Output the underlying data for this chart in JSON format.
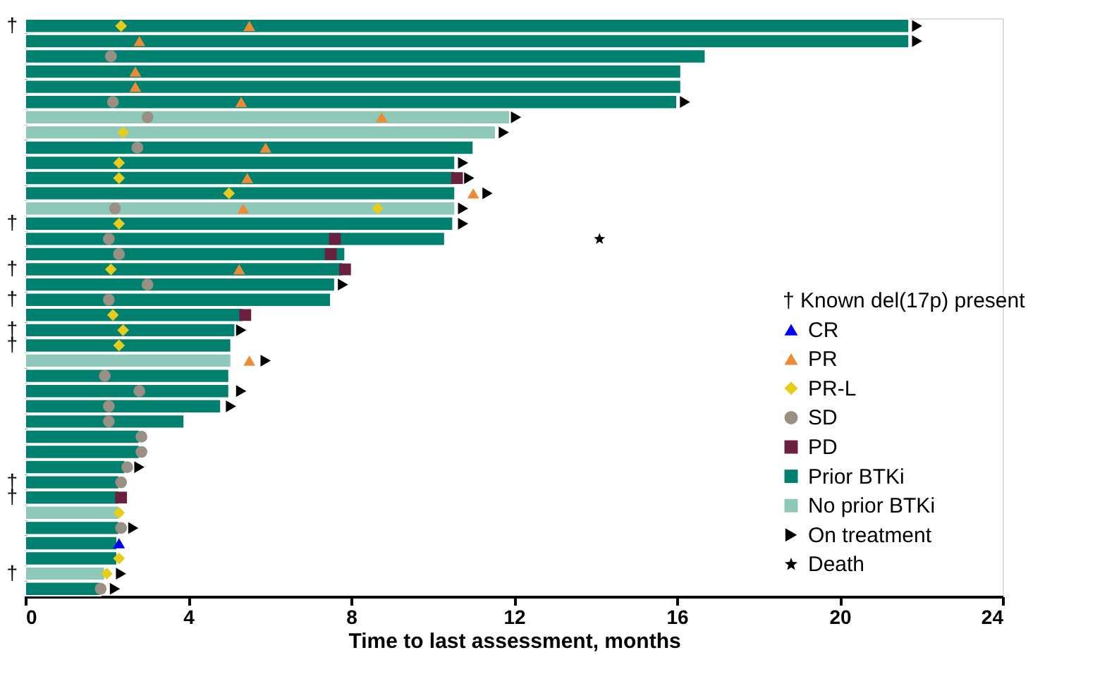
{
  "chart_data": {
    "type": "bar",
    "orientation": "horizontal",
    "xlabel": "Time to last assessment, months",
    "xlim": [
      0,
      24
    ],
    "xticks": [
      0,
      4,
      8,
      12,
      16,
      20,
      24
    ],
    "grid": false,
    "legend": "bottom right",
    "annotations": [
      "† Known del(17p) present"
    ],
    "categories": [
      "†",
      null,
      null,
      null,
      null,
      null,
      null,
      null,
      null,
      null,
      null,
      null,
      null,
      "†",
      null,
      null,
      "†",
      null,
      "†",
      null,
      "†",
      "†",
      null,
      null,
      null,
      null,
      null,
      null,
      null,
      null,
      "†",
      "†",
      null,
      null,
      null,
      null,
      "†",
      null
    ],
    "series": [
      {
        "name": "CR",
        "type": "scatter",
        "marker": "triangle",
        "color": "#0000ff",
        "values": [
          null,
          null,
          null,
          null,
          null,
          null,
          null,
          null,
          null,
          null,
          null,
          null,
          null,
          null,
          null,
          null,
          null,
          null,
          null,
          null,
          null,
          null,
          null,
          null,
          null,
          null,
          null,
          null,
          null,
          null,
          null,
          null,
          null,
          null,
          2.3,
          null,
          null,
          null
        ]
      },
      {
        "name": "PR",
        "type": "scatter",
        "marker": "triangle",
        "color": "#ee8a35",
        "values": [
          5.5,
          2.8,
          null,
          2.7,
          2.7,
          5.3,
          8.75,
          null,
          5.9,
          null,
          5.45,
          11.0,
          5.35,
          null,
          null,
          null,
          5.25,
          null,
          null,
          null,
          null,
          null,
          5.5,
          null,
          null,
          null,
          null,
          null,
          null,
          null,
          null,
          null,
          null,
          null,
          null,
          null,
          null,
          null
        ]
      },
      {
        "name": "PR-L",
        "type": "scatter",
        "marker": "diamond",
        "color": "#e8cc1a",
        "values": [
          2.35,
          null,
          null,
          null,
          null,
          null,
          null,
          2.4,
          null,
          2.3,
          2.3,
          5.0,
          8.65,
          2.3,
          null,
          null,
          2.1,
          null,
          null,
          2.15,
          2.4,
          2.3,
          null,
          null,
          null,
          null,
          null,
          null,
          null,
          null,
          null,
          null,
          2.3,
          null,
          null,
          2.3,
          2.0,
          null
        ]
      },
      {
        "name": "SD",
        "type": "scatter",
        "marker": "circle",
        "color": "#9a8f84",
        "values": [
          null,
          null,
          2.1,
          null,
          null,
          2.15,
          3.0,
          null,
          2.75,
          null,
          null,
          null,
          2.2,
          null,
          2.05,
          2.3,
          null,
          3.0,
          2.05,
          null,
          null,
          null,
          null,
          1.95,
          2.8,
          2.05,
          2.05,
          2.85,
          2.85,
          2.5,
          2.35,
          null,
          null,
          2.35,
          null,
          null,
          null,
          1.85
        ]
      },
      {
        "name": "PD",
        "type": "scatter",
        "marker": "square",
        "color": "#6b2040",
        "values": [
          null,
          null,
          null,
          null,
          null,
          null,
          null,
          null,
          null,
          null,
          10.6,
          null,
          null,
          null,
          7.6,
          7.5,
          7.85,
          null,
          null,
          5.4,
          null,
          null,
          null,
          null,
          null,
          null,
          null,
          null,
          null,
          null,
          null,
          2.35,
          null,
          null,
          null,
          null,
          null,
          null
        ]
      },
      {
        "name": "Prior BTKi",
        "color": "#00806f",
        "values": [
          21.7,
          21.7,
          16.7,
          16.1,
          16.1,
          16.0,
          null,
          null,
          11.0,
          10.55,
          10.55,
          10.55,
          null,
          10.5,
          10.3,
          7.85,
          7.8,
          7.6,
          7.5,
          5.35,
          5.15,
          5.05,
          null,
          5.0,
          5.0,
          4.8,
          3.9,
          2.8,
          2.8,
          2.45,
          2.3,
          2.3,
          null,
          2.3,
          2.25,
          2.25,
          null,
          1.85
        ]
      },
      {
        "name": "No prior BTKi",
        "color": "#8ec8b8",
        "values": [
          null,
          null,
          null,
          null,
          null,
          null,
          11.9,
          11.55,
          null,
          null,
          null,
          null,
          10.55,
          null,
          null,
          null,
          null,
          null,
          null,
          null,
          null,
          null,
          5.05,
          null,
          null,
          null,
          null,
          null,
          null,
          null,
          null,
          null,
          2.3,
          null,
          null,
          null,
          1.95,
          null
        ]
      },
      {
        "name": "On treatment",
        "type": "scatter",
        "marker": "triangle-right",
        "color": "#000000",
        "values": [
          21.9,
          21.9,
          null,
          null,
          null,
          16.2,
          12.05,
          11.75,
          null,
          10.75,
          10.9,
          11.35,
          10.75,
          10.75,
          null,
          null,
          null,
          7.8,
          null,
          null,
          5.3,
          null,
          5.9,
          null,
          5.3,
          5.05,
          null,
          null,
          null,
          2.8,
          null,
          null,
          null,
          2.65,
          null,
          null,
          2.35,
          2.2
        ]
      },
      {
        "name": "Death",
        "type": "scatter",
        "marker": "star",
        "color": "#000000",
        "values": [
          null,
          null,
          null,
          null,
          null,
          null,
          null,
          null,
          null,
          null,
          null,
          null,
          null,
          null,
          14.1,
          null,
          null,
          null,
          null,
          null,
          null,
          null,
          null,
          null,
          null,
          null,
          null,
          null,
          null,
          null,
          null,
          null,
          null,
          null,
          null,
          null,
          null,
          null
        ]
      }
    ]
  }
}
